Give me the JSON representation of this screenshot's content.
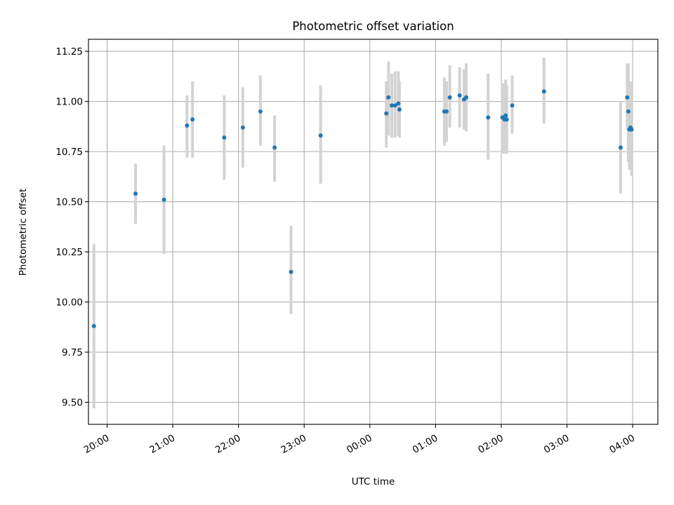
{
  "chart_data": {
    "type": "scatter",
    "title": "Photometric offset variation",
    "xlabel": "UTC time",
    "ylabel": "Photometric offset",
    "x_unit": "UTC time",
    "x_tick_labels": [
      "20:00",
      "21:00",
      "22:00",
      "23:00",
      "00:00",
      "01:00",
      "02:00",
      "03:00",
      "04:00"
    ],
    "y_tick_labels": [
      "9.50",
      "9.75",
      "10.00",
      "10.25",
      "10.50",
      "10.75",
      "11.00",
      "11.25"
    ],
    "xlim": [
      "19:43",
      "04:23"
    ],
    "ylim": [
      9.39,
      11.31
    ],
    "grid": true,
    "legend": false,
    "colors": {
      "point": "#1f77b4",
      "errorbar": "#d3d3d3"
    },
    "points": [
      {
        "x": "19:48",
        "y": 9.88,
        "lo": 9.47,
        "hi": 10.29
      },
      {
        "x": "20:26",
        "y": 10.54,
        "lo": 10.39,
        "hi": 10.69
      },
      {
        "x": "20:52",
        "y": 10.51,
        "lo": 10.24,
        "hi": 10.78
      },
      {
        "x": "21:13",
        "y": 10.88,
        "lo": 10.72,
        "hi": 11.03
      },
      {
        "x": "21:18",
        "y": 10.91,
        "lo": 10.72,
        "hi": 11.1
      },
      {
        "x": "21:47",
        "y": 10.82,
        "lo": 10.61,
        "hi": 11.03
      },
      {
        "x": "22:04",
        "y": 10.87,
        "lo": 10.67,
        "hi": 11.07
      },
      {
        "x": "22:20",
        "y": 10.95,
        "lo": 10.78,
        "hi": 11.13
      },
      {
        "x": "22:33",
        "y": 10.77,
        "lo": 10.6,
        "hi": 10.93
      },
      {
        "x": "22:48",
        "y": 10.15,
        "lo": 9.94,
        "hi": 10.38
      },
      {
        "x": "23:15",
        "y": 10.83,
        "lo": 10.59,
        "hi": 11.08
      },
      {
        "x": "00:15",
        "y": 10.94,
        "lo": 10.77,
        "hi": 11.1
      },
      {
        "x": "00:17",
        "y": 11.02,
        "lo": 10.83,
        "hi": 11.2
      },
      {
        "x": "00:20",
        "y": 10.98,
        "lo": 10.82,
        "hi": 11.14
      },
      {
        "x": "00:23",
        "y": 10.98,
        "lo": 10.82,
        "hi": 11.15
      },
      {
        "x": "00:26",
        "y": 10.99,
        "lo": 10.83,
        "hi": 11.15
      },
      {
        "x": "00:27",
        "y": 10.96,
        "lo": 10.82,
        "hi": 11.1
      },
      {
        "x": "01:08",
        "y": 10.95,
        "lo": 10.78,
        "hi": 11.12
      },
      {
        "x": "01:10",
        "y": 10.95,
        "lo": 10.8,
        "hi": 11.1
      },
      {
        "x": "01:13",
        "y": 11.02,
        "lo": 10.87,
        "hi": 11.18
      },
      {
        "x": "01:22",
        "y": 11.03,
        "lo": 10.87,
        "hi": 11.17
      },
      {
        "x": "01:26",
        "y": 11.01,
        "lo": 10.86,
        "hi": 11.16
      },
      {
        "x": "01:28",
        "y": 11.02,
        "lo": 10.85,
        "hi": 11.19
      },
      {
        "x": "01:48",
        "y": 10.92,
        "lo": 10.71,
        "hi": 11.14
      },
      {
        "x": "02:01",
        "y": 10.92,
        "lo": 10.74,
        "hi": 11.09
      },
      {
        "x": "02:03",
        "y": 10.91,
        "lo": 10.74,
        "hi": 11.09
      },
      {
        "x": "02:04",
        "y": 10.93,
        "lo": 10.76,
        "hi": 11.11
      },
      {
        "x": "02:05",
        "y": 10.91,
        "lo": 10.74,
        "hi": 11.08
      },
      {
        "x": "02:10",
        "y": 10.98,
        "lo": 10.84,
        "hi": 11.13
      },
      {
        "x": "02:39",
        "y": 11.05,
        "lo": 10.89,
        "hi": 11.22
      },
      {
        "x": "03:49",
        "y": 10.77,
        "lo": 10.54,
        "hi": 11.0
      },
      {
        "x": "03:55",
        "y": 11.02,
        "lo": 10.86,
        "hi": 11.19
      },
      {
        "x": "03:56",
        "y": 10.95,
        "lo": 10.7,
        "hi": 11.19
      },
      {
        "x": "03:57",
        "y": 10.86,
        "lo": 10.66,
        "hi": 11.05
      },
      {
        "x": "03:58",
        "y": 10.87,
        "lo": 10.66,
        "hi": 11.1
      },
      {
        "x": "03:59",
        "y": 10.86,
        "lo": 10.63,
        "hi": 11.09
      }
    ]
  }
}
